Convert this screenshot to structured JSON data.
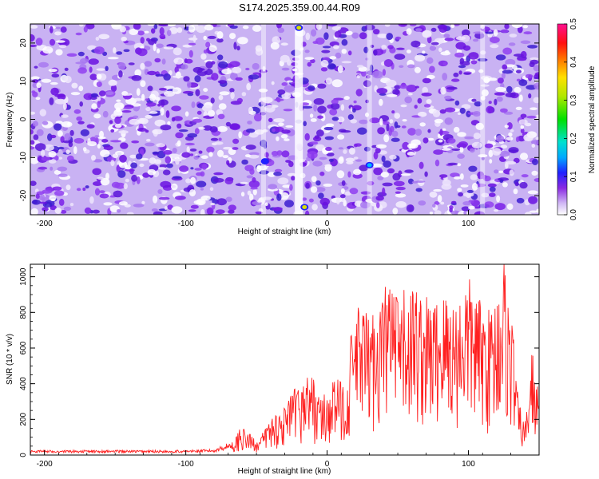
{
  "title": "S174.2025.359.00.44.R09",
  "colors": {
    "series": "#ff2020",
    "axis": "#000000"
  },
  "chart_data": [
    {
      "type": "heatmap",
      "xlabel": "Height of straight line (km)",
      "ylabel": "Frequency (Hz)",
      "xlim": [
        -210,
        150
      ],
      "ylim": [
        -25,
        25
      ],
      "x_ticks": [
        -200,
        -100,
        0,
        100
      ],
      "y_ticks": [
        -20,
        -10,
        0,
        10,
        20
      ],
      "colorbar": {
        "label": "Normalized spectral amplitude",
        "range": [
          0,
          0.5
        ],
        "ticks": [
          0.0,
          0.1,
          0.2,
          0.3,
          0.4,
          0.5
        ],
        "tick_labels": [
          "0.0",
          "0.1",
          "0.2",
          "0.3",
          "0.4",
          "0.5"
        ],
        "colormap": "white-purple-blue-cyan-green-yellow-red-magenta"
      },
      "notable_features": {
        "low_amplitude_vertical_bands_km": [
          -20,
          -45,
          30,
          110
        ],
        "high_amplitude_spots": [
          {
            "x": -16,
            "y": -23,
            "value": 0.35
          },
          {
            "x": -20,
            "y": 24,
            "value": 0.3
          },
          {
            "x": 30,
            "y": -12,
            "value": 0.15
          },
          {
            "x": -44,
            "y": -11,
            "value": 0.12
          }
        ]
      }
    },
    {
      "type": "line",
      "xlabel": "Height of straight line (km)",
      "ylabel": "SNR (10 * v/v)",
      "xlim": [
        -210,
        150
      ],
      "ylim": [
        0,
        1070
      ],
      "x_ticks": [
        -200,
        -100,
        0,
        100
      ],
      "y_ticks": [
        0,
        200,
        400,
        600,
        800,
        1000
      ],
      "grid": false,
      "series": [
        {
          "x": [
            -210,
            -180,
            -150,
            -120,
            -100,
            -80,
            -65,
            -62,
            -55,
            -48,
            -40,
            -30,
            -25,
            -18,
            -12,
            -5,
            0,
            5,
            10,
            15,
            18,
            25,
            30,
            38,
            45,
            50,
            55,
            62,
            68,
            75,
            85,
            92,
            98,
            102,
            108,
            115,
            120,
            125,
            128,
            132,
            135,
            140,
            145,
            148,
            150
          ],
          "values": [
            25,
            25,
            25,
            25,
            25,
            30,
            80,
            150,
            110,
            80,
            200,
            250,
            320,
            380,
            450,
            300,
            320,
            400,
            380,
            420,
            750,
            780,
            700,
            850,
            940,
            800,
            850,
            900,
            820,
            800,
            850,
            800,
            920,
            900,
            800,
            750,
            850,
            1060,
            850,
            650,
            300,
            150,
            560,
            400,
            300
          ]
        }
      ]
    }
  ]
}
